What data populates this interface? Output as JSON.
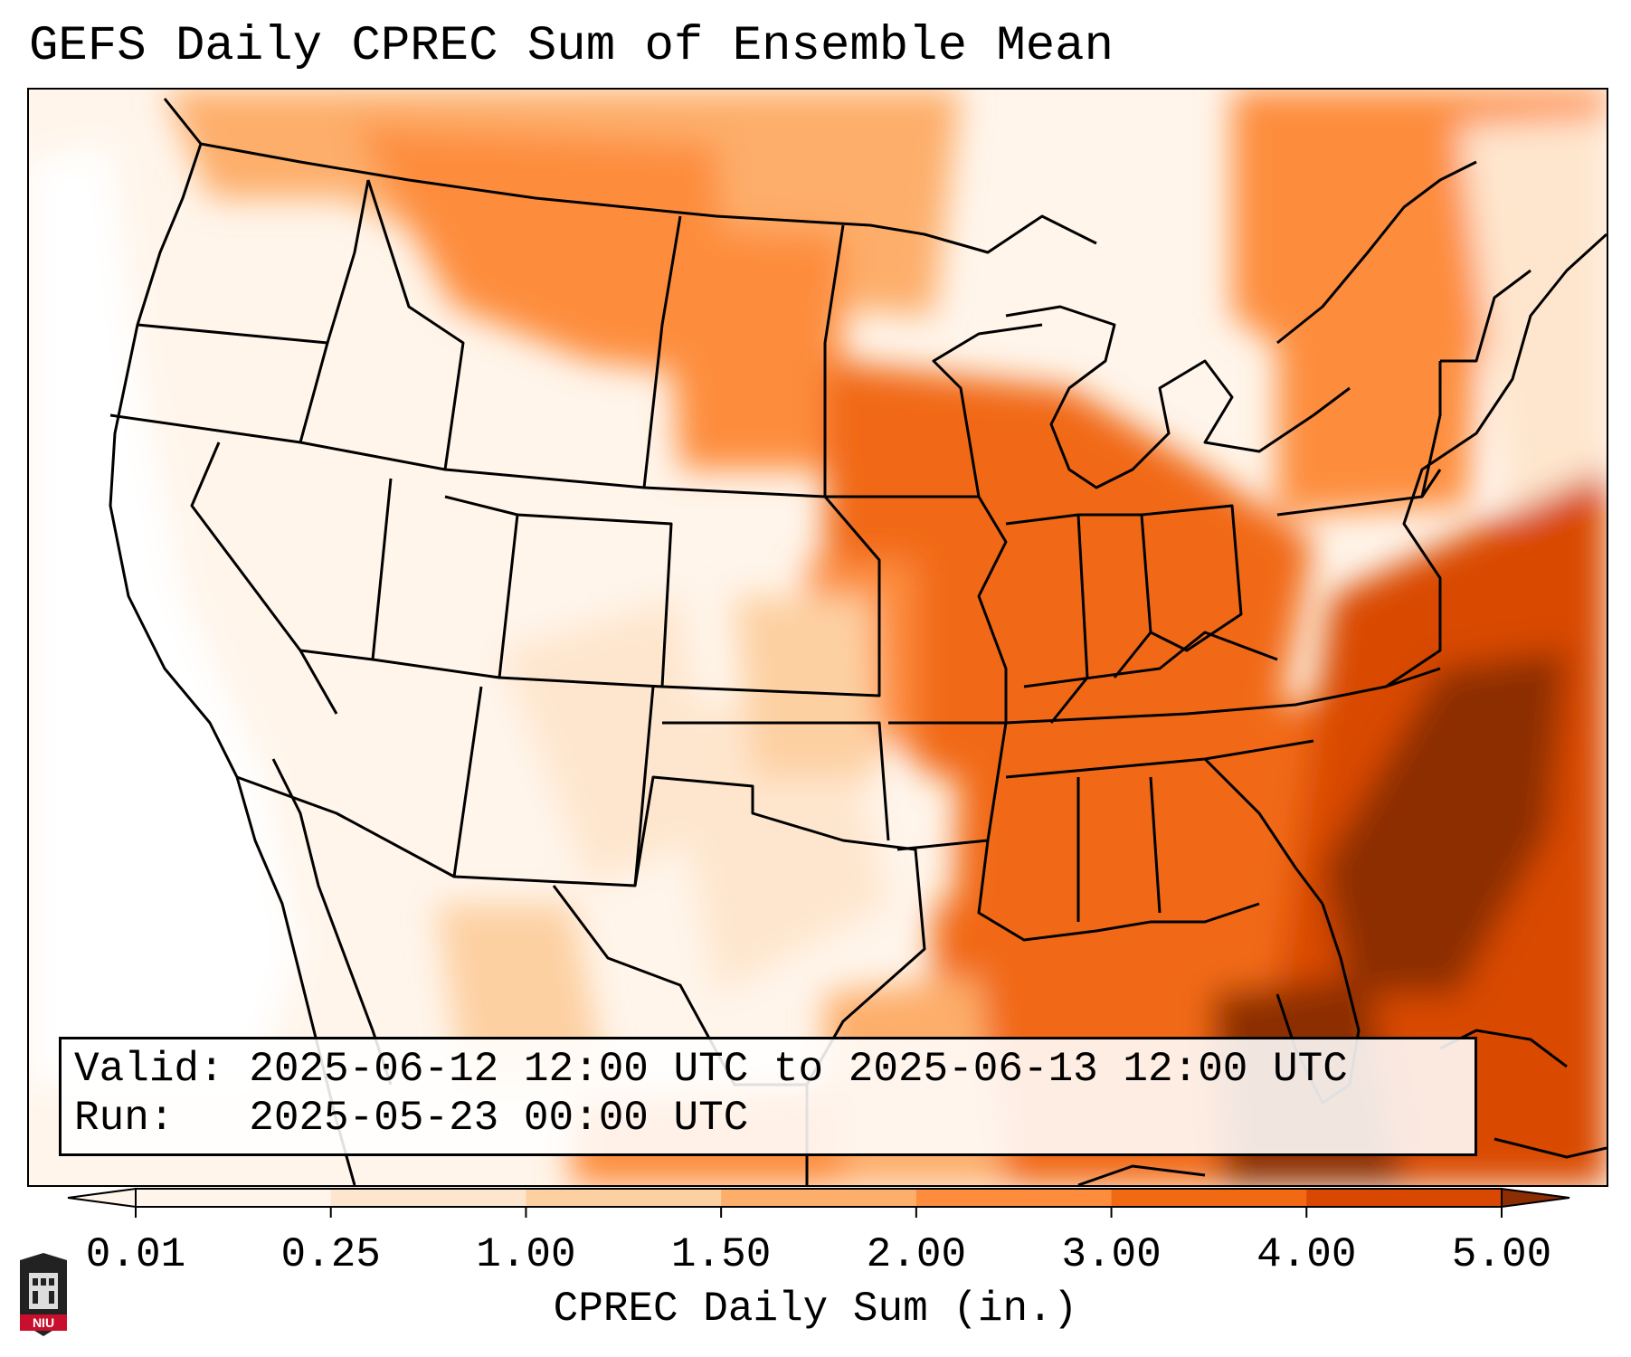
{
  "title": "GEFS Daily CPREC Sum of Ensemble Mean",
  "info": {
    "valid_line": "Valid: 2025-06-12 12:00 UTC to 2025-06-13 12:00 UTC",
    "run_line": "Run:   2025-05-23 00:00 UTC"
  },
  "colorbar": {
    "label": "CPREC Daily Sum (in.)",
    "ticks": [
      "0.01",
      "0.25",
      "1.00",
      "1.50",
      "2.00",
      "3.00",
      "4.00",
      "5.00"
    ],
    "colors": [
      "#fff5eb",
      "#fee6ce",
      "#fdd0a2",
      "#fdae6b",
      "#fd8d3c",
      "#f16913",
      "#d94801",
      "#8c2d04"
    ]
  },
  "logo": {
    "text": "NIU",
    "color": "#c8102e"
  }
}
